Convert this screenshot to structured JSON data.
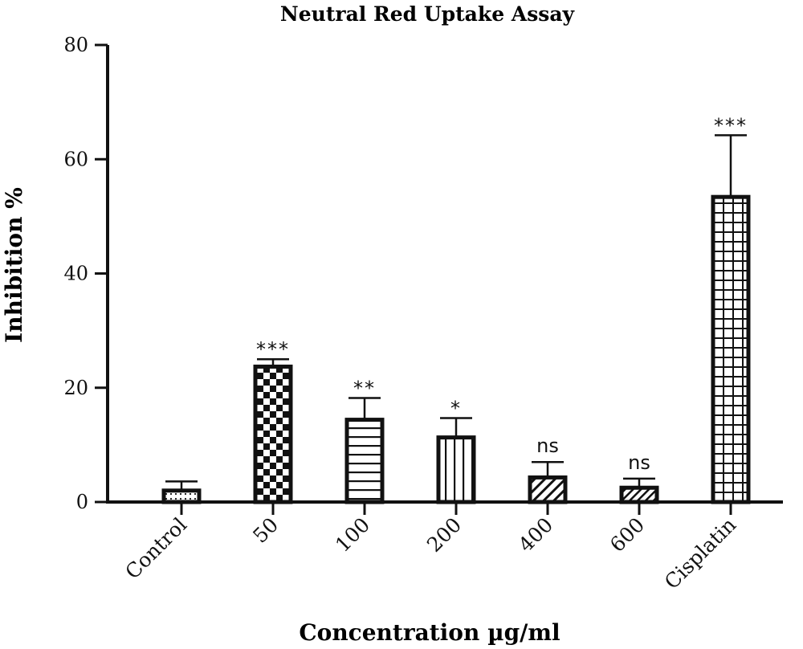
{
  "chart_data": {
    "type": "bar",
    "title": "Neutral Red Uptake Assay",
    "xlabel": "Concentration µg/ml",
    "ylabel": "Inhibition %",
    "ylim": [
      0,
      80
    ],
    "yticks": [
      0,
      20,
      40,
      60,
      80
    ],
    "categories": [
      "Control",
      "50",
      "100",
      "200",
      "400",
      "600",
      "Cisplatin"
    ],
    "values": [
      2.0,
      23.7,
      14.4,
      11.3,
      4.3,
      2.5,
      53.4
    ],
    "error": [
      1.6,
      1.3,
      3.8,
      3.4,
      2.7,
      1.6,
      10.8
    ],
    "significance": [
      "",
      "***",
      "**",
      "*",
      "ns",
      "ns",
      "***"
    ],
    "patterns": [
      "dots",
      "checker",
      "hlines",
      "vlines",
      "diagonal",
      "diagonal-dense",
      "grid"
    ],
    "grid": false,
    "legend": "none",
    "colors": {
      "ink": "#111111",
      "fill": "#ffffff"
    }
  }
}
